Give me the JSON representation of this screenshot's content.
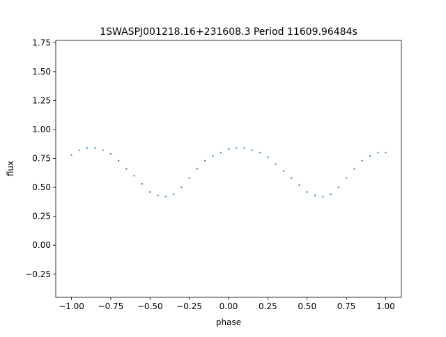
{
  "chart_data": {
    "type": "scatter",
    "title": "1SWASPJ001218.16+231608.3 Period 11609.96484s",
    "xlabel": "phase",
    "ylabel": "flux",
    "xlim": [
      -1.1,
      1.1
    ],
    "ylim": [
      -0.45,
      1.77
    ],
    "xticks": [
      -1.0,
      -0.75,
      -0.5,
      -0.25,
      0.0,
      0.25,
      0.5,
      0.75,
      1.0
    ],
    "xtick_labels": [
      "−1.00",
      "−0.75",
      "−0.50",
      "−0.25",
      "0.00",
      "0.25",
      "0.50",
      "0.75",
      "1.00"
    ],
    "yticks": [
      -0.25,
      0.0,
      0.25,
      0.5,
      0.75,
      1.0,
      1.25,
      1.5,
      1.75
    ],
    "ytick_labels": [
      "−0.25",
      "0.00",
      "0.25",
      "0.50",
      "0.75",
      "1.00",
      "1.25",
      "1.50",
      "1.75"
    ],
    "grid": false,
    "marker_color": "#1f77b4",
    "x": [
      -1.0,
      -0.95,
      -0.9,
      -0.85,
      -0.8,
      -0.75,
      -0.7,
      -0.65,
      -0.6,
      -0.55,
      -0.5,
      -0.45,
      -0.4,
      -0.35,
      -0.3,
      -0.25,
      -0.2,
      -0.15,
      -0.1,
      -0.05,
      0.0,
      0.05,
      0.1,
      0.15,
      0.2,
      0.25,
      0.3,
      0.35,
      0.4,
      0.45,
      0.5,
      0.55,
      0.6,
      0.65,
      0.7,
      0.75,
      0.8,
      0.85,
      0.9,
      0.95,
      1.0
    ],
    "y": [
      0.78,
      0.82,
      0.84,
      0.84,
      0.82,
      0.79,
      0.73,
      0.66,
      0.6,
      0.53,
      0.46,
      0.43,
      0.42,
      0.44,
      0.5,
      0.58,
      0.66,
      0.73,
      0.77,
      0.8,
      0.83,
      0.84,
      0.84,
      0.82,
      0.8,
      0.76,
      0.7,
      0.64,
      0.58,
      0.52,
      0.46,
      0.43,
      0.42,
      0.44,
      0.5,
      0.58,
      0.66,
      0.73,
      0.77,
      0.8,
      0.8
    ]
  }
}
